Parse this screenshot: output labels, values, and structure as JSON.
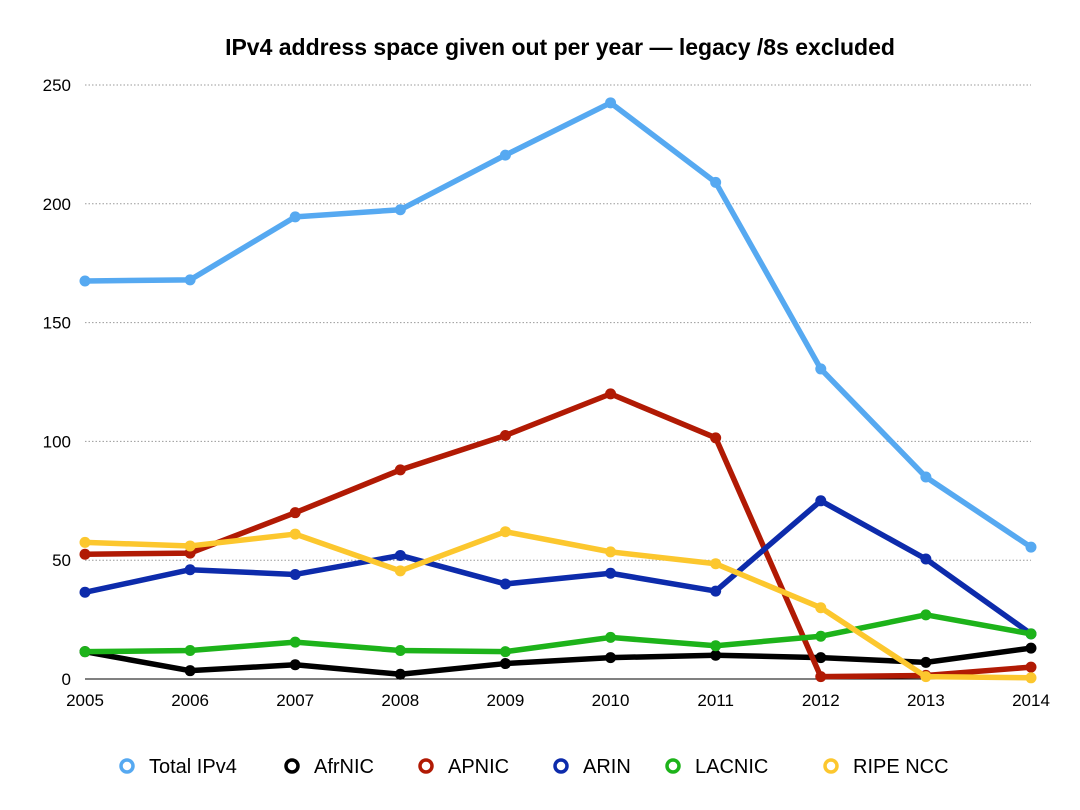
{
  "chart_data": {
    "type": "line",
    "title": "IPv4 address space given out per year — legacy /8s excluded",
    "xlabel": "",
    "ylabel": "",
    "x": [
      "2005",
      "2006",
      "2007",
      "2008",
      "2009",
      "2010",
      "2011",
      "2012",
      "2013",
      "2014"
    ],
    "ylim": [
      0,
      250
    ],
    "yticks": [
      0,
      50,
      100,
      150,
      200,
      250
    ],
    "grid": true,
    "legend_position": "bottom",
    "series": [
      {
        "name": "Total IPv4",
        "color": "#56a9f1",
        "values": [
          167.5,
          168,
          194.5,
          197.5,
          220.5,
          242.5,
          209,
          130.5,
          85,
          55.5
        ]
      },
      {
        "name": "AfrNIC",
        "color": "#000000",
        "values": [
          11.5,
          3.5,
          6,
          2,
          6.5,
          9,
          10,
          9,
          7,
          13
        ]
      },
      {
        "name": "APNIC",
        "color": "#b11a04",
        "values": [
          52.5,
          53,
          70,
          88,
          102.5,
          120,
          101.5,
          1,
          1.5,
          5
        ]
      },
      {
        "name": "ARIN",
        "color": "#0d2bab",
        "values": [
          36.5,
          46,
          44,
          52,
          40,
          44.5,
          37,
          75,
          50.5,
          19
        ]
      },
      {
        "name": "LACNIC",
        "color": "#1db31a",
        "values": [
          11.5,
          12,
          15.5,
          12,
          11.5,
          17.5,
          14,
          18,
          27,
          19
        ]
      },
      {
        "name": "RIPE NCC",
        "color": "#fcc72e",
        "values": [
          57.5,
          56,
          61,
          45.5,
          62,
          53.5,
          48.5,
          30,
          1,
          0.5
        ]
      }
    ]
  }
}
